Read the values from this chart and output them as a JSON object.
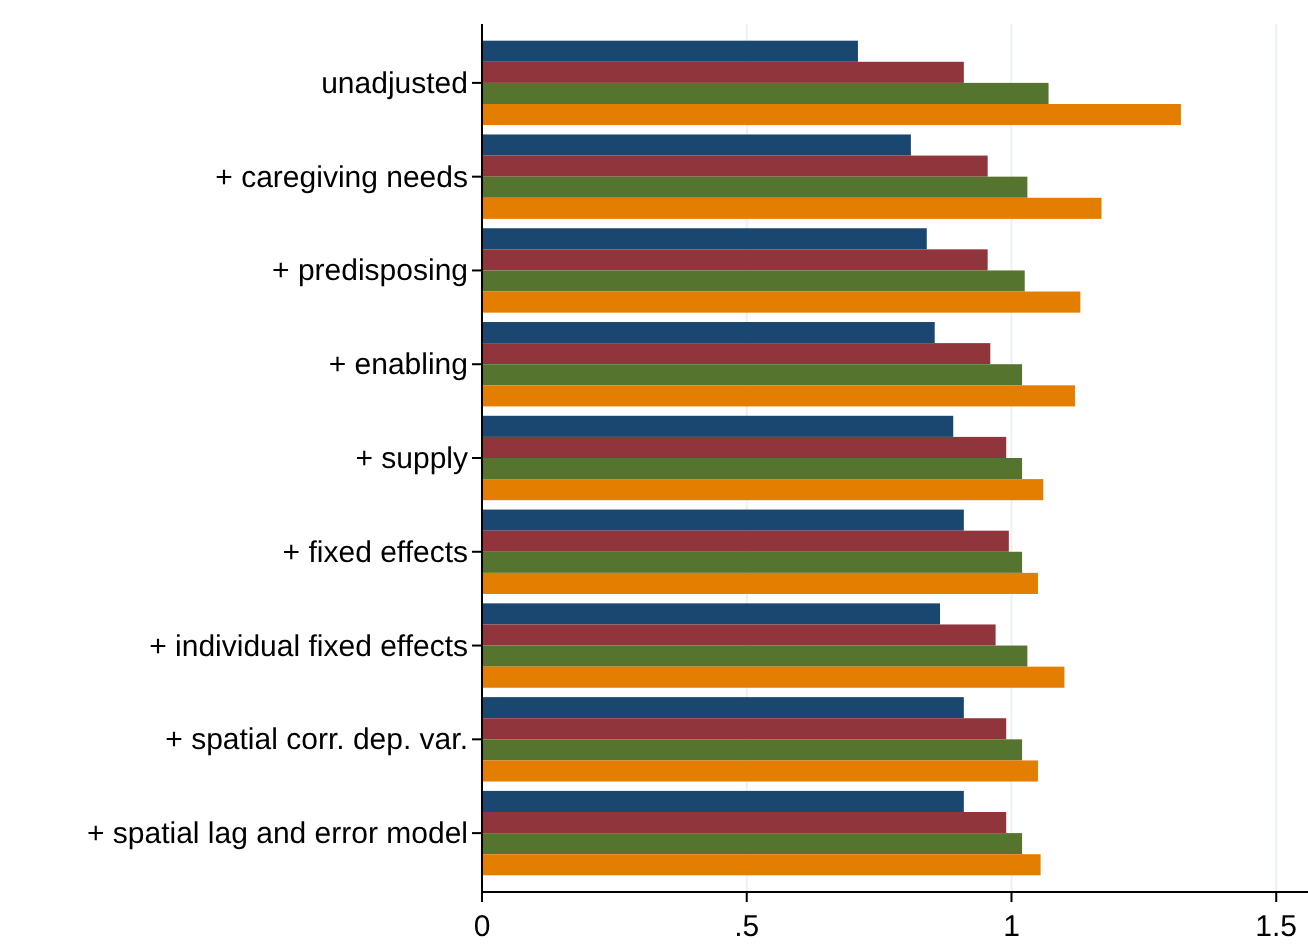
{
  "chart_data": {
    "type": "bar",
    "orientation": "horizontal",
    "categories": [
      "unadjusted",
      "+ caregiving needs",
      "+ predisposing",
      "+ enabling",
      "+ supply",
      "+ fixed effects",
      "+ individual fixed effects",
      "+ spatial corr. dep. var.",
      "+ spatial lag and error model"
    ],
    "series": [
      {
        "color": "#1a476f",
        "values": [
          0.71,
          0.81,
          0.84,
          0.855,
          0.89,
          0.91,
          0.865,
          0.91,
          0.91
        ]
      },
      {
        "color": "#90353b",
        "values": [
          0.91,
          0.955,
          0.955,
          0.96,
          0.99,
          0.995,
          0.97,
          0.99,
          0.99
        ]
      },
      {
        "color": "#55752f",
        "values": [
          1.07,
          1.03,
          1.025,
          1.02,
          1.02,
          1.02,
          1.03,
          1.02,
          1.02
        ]
      },
      {
        "color": "#e37e00",
        "values": [
          1.32,
          1.17,
          1.13,
          1.12,
          1.06,
          1.05,
          1.1,
          1.05,
          1.055
        ]
      }
    ],
    "xlim": [
      0,
      1.56
    ],
    "xticks": [
      0,
      {
        "value": 0.5,
        "label": ".5"
      },
      1,
      1.5
    ],
    "grid": "x"
  }
}
